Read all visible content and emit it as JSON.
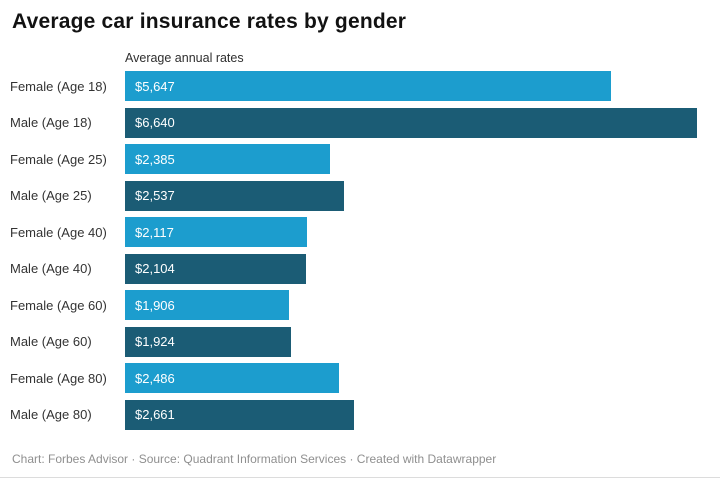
{
  "header": {
    "title": "Average car insurance rates by gender",
    "axis_label": "Average annual rates"
  },
  "chart_data": {
    "type": "bar",
    "orientation": "horizontal",
    "title": "Average car insurance rates by gender",
    "xlabel": "Average annual rates",
    "xlim": [
      0,
      6640
    ],
    "value_prefix": "$",
    "grid": false,
    "legend": "none",
    "colors": {
      "female": "#1c9dce",
      "male": "#1b5c75"
    },
    "categories": [
      "Female (Age 18)",
      "Male (Age 18)",
      "Female (Age 25)",
      "Male (Age 25)",
      "Female (Age 40)",
      "Male (Age 40)",
      "Female (Age 60)",
      "Male (Age 60)",
      "Female (Age 80)",
      "Male (Age 80)"
    ],
    "values": [
      5647,
      6640,
      2385,
      2537,
      2117,
      2104,
      1906,
      1924,
      2486,
      2661
    ],
    "rows": [
      {
        "label": "Female (Age 18)",
        "gender": "female",
        "value": 5647,
        "value_label": "$5,647"
      },
      {
        "label": "Male (Age 18)",
        "gender": "male",
        "value": 6640,
        "value_label": "$6,640"
      },
      {
        "label": "Female (Age 25)",
        "gender": "female",
        "value": 2385,
        "value_label": "$2,385"
      },
      {
        "label": "Male (Age 25)",
        "gender": "male",
        "value": 2537,
        "value_label": "$2,537"
      },
      {
        "label": "Female (Age 40)",
        "gender": "female",
        "value": 2117,
        "value_label": "$2,117"
      },
      {
        "label": "Male (Age 40)",
        "gender": "male",
        "value": 2104,
        "value_label": "$2,104"
      },
      {
        "label": "Female (Age 60)",
        "gender": "female",
        "value": 1906,
        "value_label": "$1,906"
      },
      {
        "label": "Male (Age 60)",
        "gender": "male",
        "value": 1924,
        "value_label": "$1,924"
      },
      {
        "label": "Female (Age 80)",
        "gender": "female",
        "value": 2486,
        "value_label": "$2,486"
      },
      {
        "label": "Male (Age 80)",
        "gender": "male",
        "value": 2661,
        "value_label": "$2,661"
      }
    ]
  },
  "footer": {
    "text": "Chart: Forbes Advisor · Source: Quadrant Information Services · Created with Datawrapper"
  }
}
